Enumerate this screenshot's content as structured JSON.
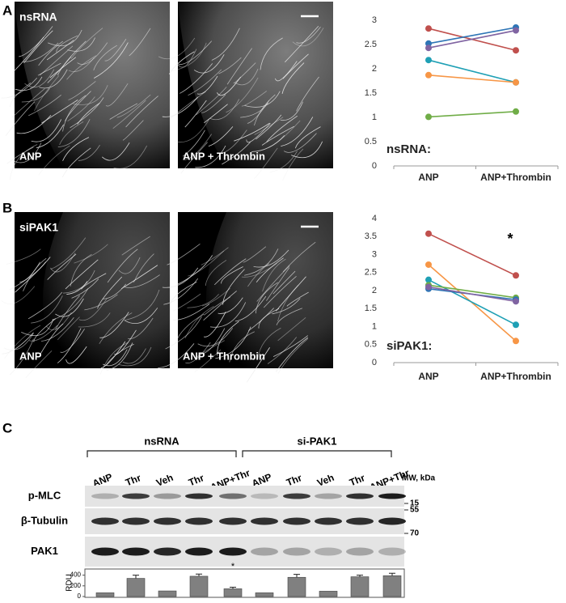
{
  "panel_labels": [
    "A",
    "B",
    "C"
  ],
  "images": [
    {
      "top_left": "nsRNA",
      "left_caption": "ANP",
      "right_caption": "ANP + Thrombin"
    },
    {
      "top_left": "siPAK1",
      "left_caption": "ANP",
      "right_caption": "ANP + Thrombin"
    }
  ],
  "chart_data": [
    {
      "type": "line",
      "categories": [
        "ANP",
        "ANP+Thrombin"
      ],
      "inner_label": "nsRNA:",
      "ylim": [
        0,
        3
      ],
      "yticks": [
        0,
        0.5,
        1,
        1.5,
        2,
        2.5,
        3
      ],
      "series": [
        {
          "color": "#c0504d",
          "values": [
            2.83,
            2.38
          ]
        },
        {
          "color": "#2e75b6",
          "values": [
            2.52,
            2.85
          ]
        },
        {
          "color": "#8064a2",
          "values": [
            2.43,
            2.79
          ]
        },
        {
          "color": "#1fa0b5",
          "values": [
            2.18,
            1.72
          ]
        },
        {
          "color": "#f79646",
          "values": [
            1.87,
            1.72
          ]
        },
        {
          "color": "#70ad47",
          "values": [
            1.01,
            1.12
          ]
        }
      ]
    },
    {
      "type": "line",
      "categories": [
        "ANP",
        "ANP+Thrombin"
      ],
      "inner_label": "siPAK1:",
      "annotation": "*",
      "ylim": [
        0,
        4
      ],
      "yticks": [
        0,
        0.5,
        1,
        1.5,
        2,
        2.5,
        3,
        3.5,
        4
      ],
      "series": [
        {
          "color": "#c0504d",
          "values": [
            3.58,
            2.42
          ]
        },
        {
          "color": "#f79646",
          "values": [
            2.72,
            0.6
          ]
        },
        {
          "color": "#1fa0b5",
          "values": [
            2.3,
            1.05
          ]
        },
        {
          "color": "#70ad47",
          "values": [
            2.15,
            1.8
          ]
        },
        {
          "color": "#2e75b6",
          "values": [
            2.05,
            1.75
          ]
        },
        {
          "color": "#8064a2",
          "values": [
            2.1,
            1.7
          ]
        }
      ]
    },
    {
      "type": "bar",
      "y_label": "RDU",
      "color": "#808080",
      "annotation": "*",
      "values": [
        70,
        340,
        105,
        380,
        145,
        70,
        360,
        100,
        370,
        390
      ],
      "errors": [
        0,
        60,
        0,
        40,
        30,
        0,
        55,
        0,
        30,
        45
      ],
      "ylim": [
        0,
        500
      ],
      "yticks": [
        0,
        200,
        400
      ]
    }
  ],
  "blot": {
    "groups": [
      "nsRNA",
      "si-PAK1"
    ],
    "lanes": [
      "ANP",
      "Thr",
      "Veh",
      "Thr",
      "ANP+Thr",
      "ANP",
      "Thr",
      "Veh",
      "Thr",
      "ANP+Thr"
    ],
    "mw_label": "MW, kDa",
    "rows": [
      {
        "label": "p-MLC",
        "mw": 15
      },
      {
        "label": "β-Tubulin",
        "mw": 55
      },
      {
        "label": "PAK1",
        "mw": 70
      }
    ]
  }
}
